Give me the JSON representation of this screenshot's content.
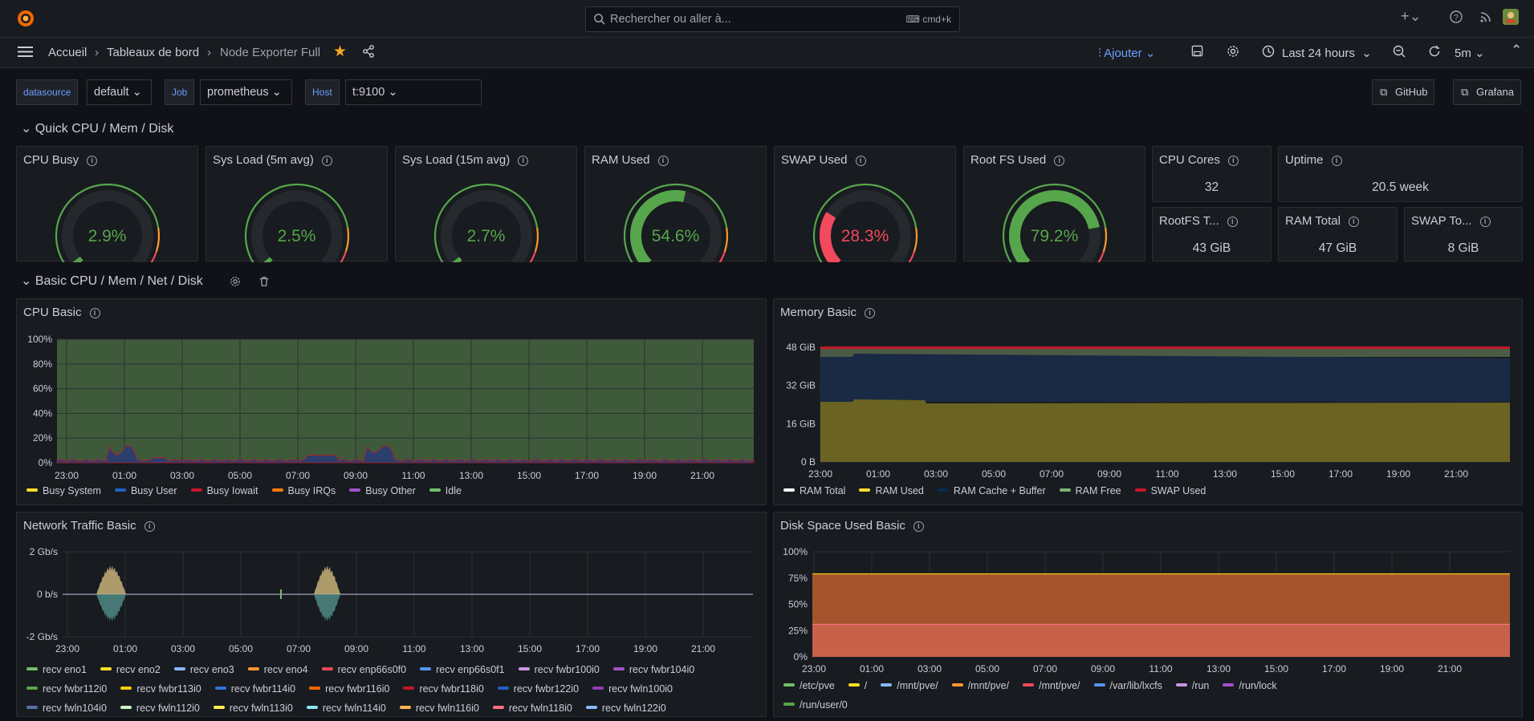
{
  "search": {
    "placeholder": "Rechercher ou aller à...",
    "shortcut": "cmd+k"
  },
  "breadcrumb": [
    "Accueil",
    "Tableaux de bord",
    "Node Exporter Full"
  ],
  "toolbar": {
    "add_label": "Ajouter",
    "time_range": "Last 24 hours",
    "refresh": "5m"
  },
  "variables": [
    {
      "label": "datasource",
      "value": "default"
    },
    {
      "label": "Job",
      "value": "prometheus"
    },
    {
      "label": "Host",
      "value": "t:9100"
    }
  ],
  "links": [
    "GitHub",
    "Grafana"
  ],
  "rows": {
    "quick": "Quick CPU / Mem / Disk",
    "basic": "Basic CPU / Mem / Net / Disk"
  },
  "gauges": [
    {
      "title": "CPU Busy",
      "value": "2.9%",
      "percent": 2.9,
      "color": "#56a64b"
    },
    {
      "title": "Sys Load (5m avg)",
      "value": "2.5%",
      "percent": 2.5,
      "color": "#56a64b"
    },
    {
      "title": "Sys Load (15m avg)",
      "value": "2.7%",
      "percent": 2.7,
      "color": "#56a64b"
    },
    {
      "title": "RAM Used",
      "value": "54.6%",
      "percent": 54.6,
      "color": "#56a64b"
    },
    {
      "title": "SWAP Used",
      "value": "28.3%",
      "percent": 28.3,
      "color": "#f2495c"
    },
    {
      "title": "Root FS Used",
      "value": "79.2%",
      "percent": 79.2,
      "color": "#56a64b"
    }
  ],
  "stats": [
    {
      "title": "CPU Cores",
      "value": "32"
    },
    {
      "title": "Uptime",
      "value": "20.5 week"
    },
    {
      "title": "RootFS T...",
      "value": "43 GiB"
    },
    {
      "title": "RAM Total",
      "value": "47 GiB"
    },
    {
      "title": "SWAP To...",
      "value": "8 GiB"
    }
  ],
  "panels": {
    "cpu": {
      "title": "CPU Basic",
      "y_ticks": [
        "100%",
        "80%",
        "60%",
        "40%",
        "20%",
        "0%"
      ],
      "x_ticks": [
        "23:00",
        "01:00",
        "03:00",
        "05:00",
        "07:00",
        "09:00",
        "11:00",
        "13:00",
        "15:00",
        "17:00",
        "19:00",
        "21:00"
      ],
      "legend": [
        {
          "name": "Busy System",
          "color": "#fade2a"
        },
        {
          "name": "Busy User",
          "color": "#1f60c4"
        },
        {
          "name": "Busy Iowait",
          "color": "#c4162a"
        },
        {
          "name": "Busy IRQs",
          "color": "#ff780a"
        },
        {
          "name": "Busy Other",
          "color": "#a352cc"
        },
        {
          "name": "Idle",
          "color": "#73bf69"
        }
      ]
    },
    "memory": {
      "title": "Memory Basic",
      "y_ticks": [
        "48 GiB",
        "32 GiB",
        "16 GiB",
        "0 B"
      ],
      "x_ticks": [
        "23:00",
        "01:00",
        "03:00",
        "05:00",
        "07:00",
        "09:00",
        "11:00",
        "13:00",
        "15:00",
        "17:00",
        "19:00",
        "21:00"
      ],
      "legend": [
        {
          "name": "RAM Total",
          "color": "#ffffff"
        },
        {
          "name": "RAM Used",
          "color": "#fade2a"
        },
        {
          "name": "RAM Cache + Buffer",
          "color": "#052b51"
        },
        {
          "name": "RAM Free",
          "color": "#7eb26d"
        },
        {
          "name": "SWAP Used",
          "color": "#c4162a"
        }
      ]
    },
    "network": {
      "title": "Network Traffic Basic",
      "y_ticks": [
        "2 Gb/s",
        "0 b/s",
        "-2 Gb/s"
      ],
      "x_ticks": [
        "23:00",
        "01:00",
        "03:00",
        "05:00",
        "07:00",
        "09:00",
        "11:00",
        "13:00",
        "15:00",
        "17:00",
        "19:00",
        "21:00"
      ],
      "legend_rows": [
        [
          {
            "name": "recv eno1",
            "color": "#73bf69"
          },
          {
            "name": "recv eno2",
            "color": "#fade2a"
          },
          {
            "name": "recv eno3",
            "color": "#8ab8ff"
          },
          {
            "name": "recv eno4",
            "color": "#ff9830"
          },
          {
            "name": "recv enp66s0f0",
            "color": "#f2495c"
          },
          {
            "name": "recv enp66s0f1",
            "color": "#5794f2"
          },
          {
            "name": "recv fwbr100i0",
            "color": "#ca95e5"
          },
          {
            "name": "recv fwbr104i0",
            "color": "#a352cc"
          }
        ],
        [
          {
            "name": "recv fwbr112i0",
            "color": "#56a64b"
          },
          {
            "name": "recv fwbr113i0",
            "color": "#f2cc0c"
          },
          {
            "name": "recv fwbr114i0",
            "color": "#3274d9"
          },
          {
            "name": "recv fwbr116i0",
            "color": "#fa6400"
          },
          {
            "name": "recv fwbr118i0",
            "color": "#c4162a"
          },
          {
            "name": "recv fwbr122i0",
            "color": "#1f60c4"
          },
          {
            "name": "recv fwln100i0",
            "color": "#8f3bb8"
          }
        ],
        [
          {
            "name": "recv fwln104i0",
            "color": "#5a6fa8"
          },
          {
            "name": "recv fwln112i0",
            "color": "#c8f2c2"
          },
          {
            "name": "recv fwln113i0",
            "color": "#ffee52"
          },
          {
            "name": "recv fwln114i0",
            "color": "#8ae6f2"
          },
          {
            "name": "recv fwln116i0",
            "color": "#ffb357"
          },
          {
            "name": "recv fwln118i0",
            "color": "#ff7383"
          },
          {
            "name": "recv fwln122i0",
            "color": "#8ab8ff"
          }
        ]
      ]
    },
    "disk": {
      "title": "Disk Space Used Basic",
      "y_ticks": [
        "100%",
        "75%",
        "50%",
        "25%",
        "0%"
      ],
      "x_ticks": [
        "23:00",
        "01:00",
        "03:00",
        "05:00",
        "07:00",
        "09:00",
        "11:00",
        "13:00",
        "15:00",
        "17:00",
        "19:00",
        "21:00"
      ],
      "legend_rows": [
        [
          {
            "name": "/etc/pve",
            "color": "#73bf69"
          },
          {
            "name": "/",
            "color": "#fade2a"
          },
          {
            "name": "/mnt/pve/",
            "color": "#8ab8ff"
          },
          {
            "name": "/mnt/pve/",
            "color": "#ff9830"
          },
          {
            "name": "/mnt/pve/",
            "color": "#f2495c"
          },
          {
            "name": "/var/lib/lxcfs",
            "color": "#5794f2"
          },
          {
            "name": "/run",
            "color": "#ca95e5"
          },
          {
            "name": "/run/lock",
            "color": "#a352cc"
          }
        ],
        [
          {
            "name": "/run/user/0",
            "color": "#56a64b"
          }
        ]
      ]
    }
  },
  "chart_data": [
    {
      "type": "area",
      "title": "CPU Basic",
      "x": [
        "23:00",
        "01:00",
        "03:00",
        "05:00",
        "07:00",
        "09:00",
        "11:00",
        "13:00",
        "15:00",
        "17:00",
        "19:00",
        "21:00"
      ],
      "series": [
        {
          "name": "Idle",
          "values": [
            97,
            95,
            98,
            98,
            97,
            96,
            98,
            98,
            98,
            98,
            98,
            98
          ]
        },
        {
          "name": "Busy User",
          "values": [
            2,
            4,
            1,
            1,
            2,
            3,
            1,
            1,
            1,
            1,
            1,
            1
          ]
        }
      ],
      "ylim": [
        0,
        100
      ]
    },
    {
      "type": "area",
      "title": "Memory Basic",
      "x": [
        "23:00",
        "01:00",
        "03:00",
        "05:00",
        "07:00",
        "09:00",
        "11:00",
        "13:00",
        "15:00",
        "17:00",
        "19:00",
        "21:00"
      ],
      "series": [
        {
          "name": "RAM Used",
          "values": [
            25,
            26,
            25,
            25,
            25,
            25,
            25,
            25,
            25,
            25,
            25,
            25
          ]
        },
        {
          "name": "RAM Total",
          "values": [
            47,
            47,
            47,
            47,
            47,
            47,
            47,
            47,
            47,
            47,
            47,
            47
          ]
        }
      ],
      "ylim": [
        0,
        48
      ]
    },
    {
      "type": "line",
      "title": "Network Traffic Basic",
      "x": [
        "23:00",
        "01:00",
        "03:00",
        "05:00",
        "07:00",
        "09:00",
        "11:00",
        "13:00",
        "15:00",
        "17:00",
        "19:00",
        "21:00"
      ],
      "ylim": [
        -2,
        2
      ]
    },
    {
      "type": "area",
      "title": "Disk Space Used Basic",
      "x": [
        "23:00",
        "01:00",
        "03:00",
        "05:00",
        "07:00",
        "09:00",
        "11:00",
        "13:00",
        "15:00",
        "17:00",
        "19:00",
        "21:00"
      ],
      "series": [
        {
          "name": "/",
          "values": [
            79,
            79,
            79,
            79,
            79,
            79,
            79,
            79,
            79,
            79,
            79,
            79
          ]
        },
        {
          "name": "/mnt/pve/",
          "values": [
            31,
            31,
            31,
            31,
            31,
            31,
            31,
            31,
            31,
            31,
            31,
            31
          ]
        }
      ],
      "ylim": [
        0,
        100
      ]
    }
  ]
}
